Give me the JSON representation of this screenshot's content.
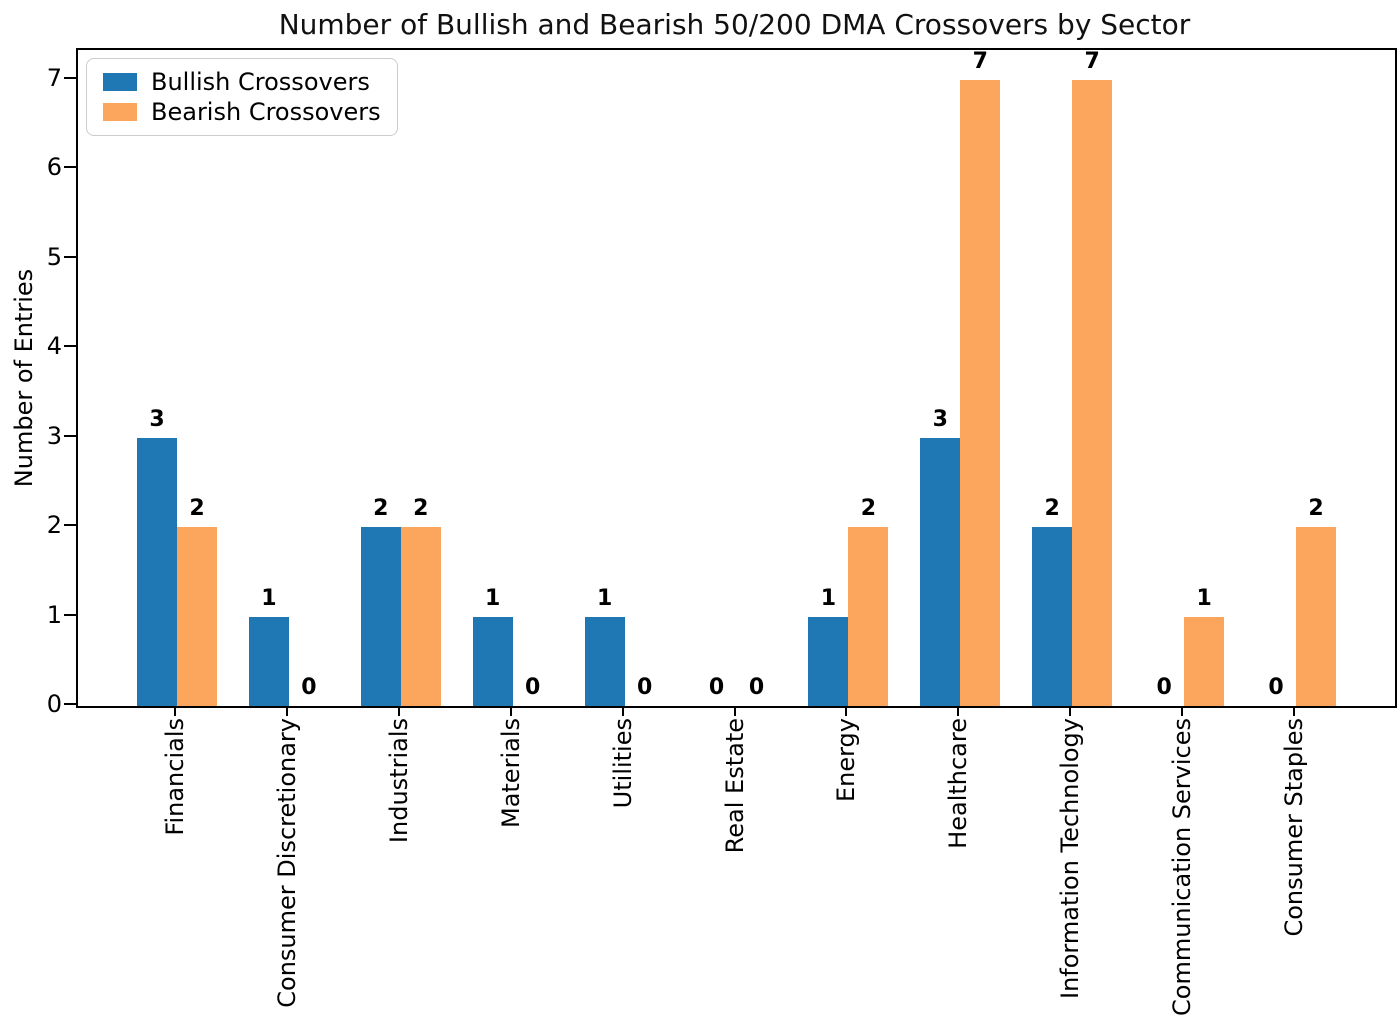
{
  "figure": {
    "title": "Number of Bullish and Bearish 50/200 DMA Crossovers by Sector",
    "ylabel": "Number of Entries"
  },
  "legend": {
    "items": [
      {
        "label": "Bullish Crossovers",
        "color": "#1f77b4"
      },
      {
        "label": "Bearish Crossovers",
        "color": "#fca55d"
      }
    ]
  },
  "chart_data": {
    "type": "bar",
    "title": "Number of Bullish and Bearish 50/200 DMA Crossovers by Sector",
    "xlabel": "",
    "ylabel": "Number of Entries",
    "categories": [
      "Financials",
      "Consumer Discretionary",
      "Industrials",
      "Materials",
      "Utilities",
      "Real Estate",
      "Energy",
      "Healthcare",
      "Information Technology",
      "Communication Services",
      "Consumer Staples"
    ],
    "series": [
      {
        "name": "Bullish Crossovers",
        "color": "#1f77b4",
        "values": [
          3,
          1,
          2,
          1,
          1,
          0,
          1,
          3,
          2,
          0,
          0
        ]
      },
      {
        "name": "Bearish Crossovers",
        "color": "#fca55d",
        "values": [
          2,
          0,
          2,
          0,
          0,
          0,
          2,
          7,
          7,
          1,
          2
        ]
      }
    ],
    "yticks": [
      0,
      1,
      2,
      3,
      4,
      5,
      6,
      7
    ],
    "ylim": [
      0,
      7.33
    ],
    "bar_value_labels": true,
    "grid": false,
    "legend_position": "upper left"
  }
}
